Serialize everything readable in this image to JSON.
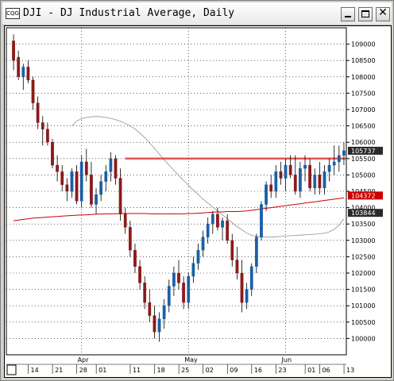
{
  "window": {
    "title": "DJI - DJ Industrial Average, Daily",
    "icon": "chart-app-icon"
  },
  "colors": {
    "up": "#1a5fa8",
    "down": "#8b1a1a",
    "grid": "#000000",
    "ma_long": "#cc0000",
    "ma_short": "#909090",
    "resistance": "#e03030"
  },
  "chart_data": {
    "type": "candlestick",
    "title": "DJI - DJ Industrial Average, Daily",
    "ylim": [
      9950,
      10950
    ],
    "y_ticks": [
      10000,
      10050,
      10100,
      10150,
      10200,
      10250,
      10300,
      10350,
      10400,
      10450,
      10500,
      10550,
      10600,
      10650,
      10700,
      10750,
      10800,
      10850,
      10900
    ],
    "y_tick_labels": [
      "100000",
      "100500",
      "101000",
      "101500",
      "102000",
      "102500",
      "103000",
      "103500",
      "104000",
      "104500",
      "105000",
      "105500",
      "106000",
      "106500",
      "107000",
      "107500",
      "108000",
      "108500",
      "109000"
    ],
    "price_tags": [
      {
        "label": "105737",
        "value": 10574,
        "style": "dark"
      },
      {
        "label": "104372",
        "value": 10437,
        "style": "red"
      },
      {
        "label": "103844",
        "value": 10384,
        "style": "dark"
      }
    ],
    "month_labels": [
      {
        "label": "Apr",
        "index": 14
      },
      {
        "label": "May",
        "index": 36
      },
      {
        "label": "Jun",
        "index": 56
      }
    ],
    "day_labels": [
      {
        "label": "14",
        "index": 4
      },
      {
        "label": "21",
        "index": 9
      },
      {
        "label": "28",
        "index": 14
      },
      {
        "label": "01",
        "index": 18
      },
      {
        "label": "11",
        "index": 25
      },
      {
        "label": "18",
        "index": 30
      },
      {
        "label": "25",
        "index": 35
      },
      {
        "label": "02",
        "index": 40
      },
      {
        "label": "09",
        "index": 45
      },
      {
        "label": "16",
        "index": 50
      },
      {
        "label": "23",
        "index": 55
      },
      {
        "label": "01",
        "index": 61
      },
      {
        "label": "06",
        "index": 64
      },
      {
        "label": "13",
        "index": 69
      }
    ],
    "candles": [
      [
        10910,
        10930,
        10820,
        10850
      ],
      [
        10860,
        10880,
        10790,
        10800
      ],
      [
        10800,
        10840,
        10760,
        10830
      ],
      [
        10830,
        10850,
        10780,
        10790
      ],
      [
        10790,
        10800,
        10700,
        10720
      ],
      [
        10720,
        10740,
        10640,
        10660
      ],
      [
        10660,
        10680,
        10590,
        10640
      ],
      [
        10640,
        10660,
        10590,
        10600
      ],
      [
        10600,
        10610,
        10520,
        10530
      ],
      [
        10530,
        10560,
        10480,
        10510
      ],
      [
        10510,
        10530,
        10450,
        10470
      ],
      [
        10470,
        10490,
        10420,
        10450
      ],
      [
        10450,
        10520,
        10430,
        10510
      ],
      [
        10510,
        10530,
        10410,
        10420
      ],
      [
        10420,
        10560,
        10400,
        10540
      ],
      [
        10540,
        10580,
        10480,
        10500
      ],
      [
        10500,
        10540,
        10400,
        10410
      ],
      [
        10410,
        10460,
        10380,
        10440
      ],
      [
        10440,
        10500,
        10420,
        10480
      ],
      [
        10480,
        10530,
        10450,
        10510
      ],
      [
        10510,
        10570,
        10480,
        10550
      ],
      [
        10550,
        10560,
        10470,
        10490
      ],
      [
        10490,
        10520,
        10360,
        10380
      ],
      [
        10380,
        10400,
        10320,
        10340
      ],
      [
        10340,
        10360,
        10250,
        10270
      ],
      [
        10270,
        10290,
        10200,
        10220
      ],
      [
        10220,
        10240,
        10150,
        10170
      ],
      [
        10170,
        10190,
        10090,
        10110
      ],
      [
        10110,
        10150,
        10050,
        10070
      ],
      [
        10070,
        10100,
        10000,
        10020
      ],
      [
        10020,
        10080,
        9990,
        10060
      ],
      [
        10060,
        10120,
        10030,
        10100
      ],
      [
        10100,
        10180,
        10080,
        10160
      ],
      [
        10160,
        10220,
        10130,
        10200
      ],
      [
        10200,
        10240,
        10150,
        10170
      ],
      [
        10170,
        10190,
        10090,
        10110
      ],
      [
        10110,
        10200,
        10090,
        10190
      ],
      [
        10190,
        10250,
        10170,
        10230
      ],
      [
        10230,
        10290,
        10210,
        10270
      ],
      [
        10270,
        10330,
        10250,
        10310
      ],
      [
        10310,
        10370,
        10290,
        10350
      ],
      [
        10350,
        10390,
        10320,
        10380
      ],
      [
        10380,
        10400,
        10330,
        10340
      ],
      [
        10340,
        10370,
        10300,
        10360
      ],
      [
        10360,
        10380,
        10290,
        10300
      ],
      [
        10300,
        10320,
        10220,
        10240
      ],
      [
        10240,
        10280,
        10180,
        10200
      ],
      [
        10200,
        10240,
        10080,
        10110
      ],
      [
        10110,
        10170,
        10090,
        10150
      ],
      [
        10150,
        10230,
        10130,
        10220
      ],
      [
        10220,
        10320,
        10200,
        10310
      ],
      [
        10310,
        10420,
        10300,
        10410
      ],
      [
        10410,
        10480,
        10390,
        10470
      ],
      [
        10470,
        10500,
        10430,
        10450
      ],
      [
        10450,
        10530,
        10430,
        10510
      ],
      [
        10510,
        10540,
        10470,
        10490
      ],
      [
        10490,
        10550,
        10450,
        10530
      ],
      [
        10530,
        10560,
        10490,
        10500
      ],
      [
        10500,
        10560,
        10440,
        10450
      ],
      [
        10450,
        10540,
        10430,
        10520
      ],
      [
        10520,
        10560,
        10480,
        10530
      ],
      [
        10530,
        10550,
        10450,
        10460
      ],
      [
        10460,
        10520,
        10440,
        10500
      ],
      [
        10500,
        10540,
        10440,
        10460
      ],
      [
        10460,
        10530,
        10440,
        10510
      ],
      [
        10510,
        10550,
        10480,
        10530
      ],
      [
        10530,
        10590,
        10500,
        10540
      ],
      [
        10540,
        10590,
        10510,
        10560
      ],
      [
        10560,
        10600,
        10530,
        10574
      ]
    ],
    "ma_long": [
      10360,
      10362,
      10364,
      10366,
      10368,
      10369,
      10370,
      10371,
      10372,
      10373,
      10374,
      10375,
      10376,
      10377,
      10378,
      10378,
      10379,
      10380,
      10380,
      10381,
      10381,
      10381,
      10382,
      10382,
      10382,
      10382,
      10382,
      10382,
      10381,
      10381,
      10381,
      10381,
      10381,
      10381,
      10381,
      10381,
      10382,
      10382,
      10383,
      10384,
      10385,
      10386,
      10387,
      10387,
      10388,
      10388,
      10388,
      10389,
      10390,
      10392,
      10394,
      10396,
      10398,
      10400,
      10402,
      10404,
      10406,
      10408,
      10410,
      10412,
      10414,
      10416,
      10418,
      10420,
      10422,
      10424,
      10426,
      10428,
      10430
    ],
    "ma_short": [
      null,
      null,
      null,
      null,
      null,
      null,
      null,
      null,
      null,
      null,
      null,
      null,
      10650,
      10665,
      10672,
      10676,
      10678,
      10679,
      10678,
      10676,
      10673,
      10669,
      10664,
      10658,
      10650,
      10640,
      10628,
      10614,
      10598,
      10582,
      10564,
      10546,
      10530,
      10514,
      10498,
      10483,
      10468,
      10454,
      10440,
      10426,
      10414,
      10402,
      10390,
      10378,
      10366,
      10354,
      10342,
      10332,
      10322,
      10316,
      10312,
      10310,
      10310,
      10310,
      10311,
      10312,
      10313,
      10314,
      10315,
      10316,
      10317,
      10318,
      10319,
      10320,
      10322,
      10326,
      10334,
      10346,
      10366
    ],
    "resistance": 10550,
    "last_price": 10574
  }
}
